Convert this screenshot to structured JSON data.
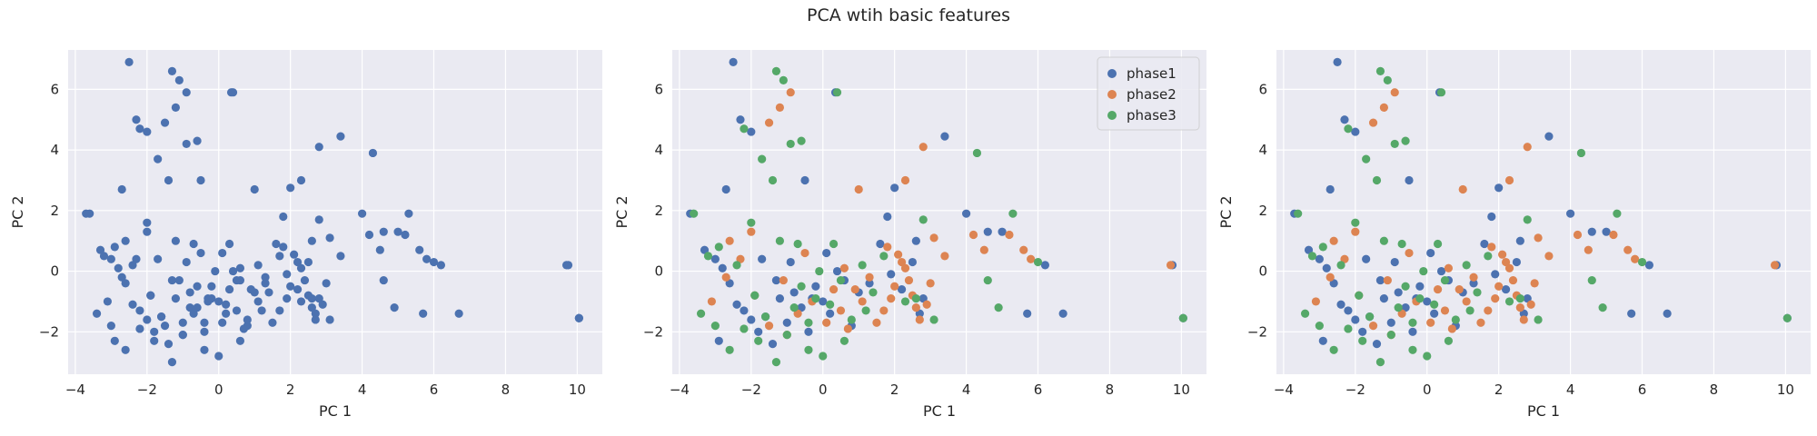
{
  "title": "PCA wtih basic features",
  "colors": {
    "phase1": "#4C72B0",
    "phase2": "#DD8452",
    "phase3": "#55A868",
    "background": "#EAEAF2",
    "grid": "#FFFFFF"
  },
  "legend": {
    "location": "top-right",
    "entries": [
      "phase1",
      "phase2",
      "phase3"
    ]
  },
  "chart_data": [
    {
      "type": "scatter",
      "title": "",
      "xlabel": "PC 1",
      "ylabel": "PC 2",
      "xlim": [
        -4.2,
        10.7
      ],
      "ylim": [
        -3.4,
        7.3
      ],
      "xticks": [
        -4,
        -2,
        0,
        2,
        4,
        6,
        8,
        10
      ],
      "yticks": [
        -2,
        0,
        2,
        4,
        6
      ],
      "grid": true,
      "legend": false,
      "highlight_series": null,
      "series_ref": "all"
    },
    {
      "type": "scatter",
      "title": "",
      "xlabel": "PC 1",
      "ylabel": "PC 2",
      "xlim": [
        -4.2,
        10.7
      ],
      "ylim": [
        -3.4,
        7.3
      ],
      "xticks": [
        -4,
        -2,
        0,
        2,
        4,
        6,
        8,
        10
      ],
      "yticks": [
        -2,
        0,
        2,
        4,
        6
      ],
      "grid": true,
      "legend": true,
      "highlight_series": "colored",
      "series_ref": "all"
    },
    {
      "type": "scatter",
      "title": "",
      "xlabel": "PC 1",
      "ylabel": "PC 2",
      "xlim": [
        -4.2,
        10.7
      ],
      "ylim": [
        -3.4,
        7.3
      ],
      "xticks": [
        -4,
        -2,
        0,
        2,
        4,
        6,
        8,
        10
      ],
      "yticks": [
        -2,
        0,
        2,
        4,
        6
      ],
      "grid": true,
      "legend": false,
      "highlight_series": "colored",
      "series_ref": "all"
    }
  ],
  "series": [
    {
      "name": "phase1",
      "points": [
        [
          -2.5,
          6.9
        ],
        [
          0.35,
          5.9
        ],
        [
          -2.7,
          2.7
        ],
        [
          -3.7,
          1.9
        ],
        [
          -2.3,
          5.0
        ],
        [
          -2.0,
          4.6
        ],
        [
          3.4,
          4.45
        ],
        [
          -0.5,
          3.0
        ],
        [
          2.0,
          2.75
        ],
        [
          4.0,
          1.9
        ],
        [
          4.6,
          1.3
        ],
        [
          5.0,
          1.3
        ],
        [
          6.2,
          0.2
        ],
        [
          9.75,
          0.2
        ],
        [
          10.05,
          -1.55
        ],
        [
          6.7,
          -1.4
        ],
        [
          5.7,
          -1.4
        ],
        [
          2.7,
          -1.4
        ],
        [
          -3.3,
          0.7
        ],
        [
          -3.0,
          0.4
        ],
        [
          -2.8,
          0.1
        ],
        [
          -2.6,
          -0.4
        ],
        [
          -2.4,
          -1.1
        ],
        [
          -2.2,
          -1.3
        ],
        [
          -2.0,
          -1.6
        ],
        [
          -1.8,
          -2.0
        ],
        [
          -1.6,
          -1.5
        ],
        [
          -1.4,
          -2.4
        ],
        [
          -1.2,
          -0.9
        ],
        [
          -1.0,
          -1.7
        ],
        [
          -0.8,
          -0.7
        ],
        [
          -0.6,
          -1.2
        ],
        [
          -0.4,
          -2.0
        ],
        [
          -0.2,
          -0.5
        ],
        [
          0.0,
          -1.0
        ],
        [
          0.2,
          -1.4
        ],
        [
          0.4,
          0.0
        ],
        [
          0.6,
          -0.3
        ],
        [
          0.8,
          -1.8
        ],
        [
          1.0,
          -0.7
        ],
        [
          1.3,
          -0.4
        ],
        [
          1.6,
          0.9
        ],
        [
          1.9,
          -0.1
        ],
        [
          2.2,
          -0.6
        ],
        [
          2.5,
          0.3
        ],
        [
          2.8,
          -0.9
        ],
        [
          -2.9,
          -2.3
        ],
        [
          -1.7,
          0.4
        ],
        [
          -0.9,
          0.3
        ],
        [
          0.1,
          0.6
        ],
        [
          1.8,
          1.8
        ],
        [
          2.6,
          1.0
        ],
        [
          -1.3,
          -0.3
        ],
        [
          -0.3,
          -0.9
        ]
      ]
    },
    {
      "name": "phase2",
      "points": [
        [
          -1.5,
          4.9
        ],
        [
          -1.2,
          5.4
        ],
        [
          -0.9,
          5.9
        ],
        [
          2.8,
          4.1
        ],
        [
          2.3,
          3.0
        ],
        [
          3.1,
          1.1
        ],
        [
          1.0,
          2.7
        ],
        [
          4.2,
          1.2
        ],
        [
          4.5,
          0.7
        ],
        [
          5.2,
          1.2
        ],
        [
          5.6,
          0.7
        ],
        [
          5.8,
          0.4
        ],
        [
          9.7,
          0.2
        ],
        [
          2.1,
          0.55
        ],
        [
          2.3,
          0.1
        ],
        [
          2.4,
          -0.3
        ],
        [
          2.5,
          -0.8
        ],
        [
          2.6,
          -1.2
        ],
        [
          2.7,
          -1.6
        ],
        [
          2.9,
          -1.1
        ],
        [
          3.0,
          -0.4
        ],
        [
          1.9,
          -0.9
        ],
        [
          1.7,
          -1.3
        ],
        [
          1.5,
          -1.7
        ],
        [
          1.3,
          -0.2
        ],
        [
          1.1,
          -1.0
        ],
        [
          0.9,
          -0.6
        ],
        [
          0.7,
          -1.9
        ],
        [
          0.5,
          -1.3
        ],
        [
          0.3,
          -0.6
        ],
        [
          0.1,
          -1.7
        ],
        [
          -0.3,
          -1.0
        ],
        [
          -0.7,
          -1.4
        ],
        [
          -1.1,
          -0.3
        ],
        [
          -1.5,
          -1.8
        ],
        [
          -1.9,
          -0.8
        ],
        [
          -2.3,
          0.4
        ],
        [
          -2.7,
          -0.2
        ],
        [
          -3.1,
          -1.0
        ],
        [
          -0.5,
          0.6
        ],
        [
          1.8,
          0.8
        ],
        [
          2.2,
          0.3
        ],
        [
          2.0,
          -0.5
        ],
        [
          3.4,
          0.5
        ],
        [
          -2.0,
          1.3
        ],
        [
          -1.0,
          -2.1
        ],
        [
          0.6,
          0.1
        ],
        [
          -2.6,
          1.0
        ]
      ]
    },
    {
      "name": "phase3",
      "points": [
        [
          -1.3,
          6.6
        ],
        [
          -1.1,
          6.3
        ],
        [
          -2.2,
          4.7
        ],
        [
          -1.7,
          3.7
        ],
        [
          -1.4,
          3.0
        ],
        [
          -0.9,
          4.2
        ],
        [
          -0.6,
          4.3
        ],
        [
          0.4,
          5.9
        ],
        [
          4.3,
          3.9
        ],
        [
          2.8,
          1.7
        ],
        [
          -3.6,
          1.9
        ],
        [
          -2.9,
          0.8
        ],
        [
          -3.4,
          -1.4
        ],
        [
          -3.0,
          -1.8
        ],
        [
          -2.6,
          -2.6
        ],
        [
          -2.2,
          -1.9
        ],
        [
          -1.9,
          -0.8
        ],
        [
          -1.6,
          -1.5
        ],
        [
          -1.3,
          -3.0
        ],
        [
          -1.0,
          -2.1
        ],
        [
          -0.8,
          -1.2
        ],
        [
          -0.6,
          -0.5
        ],
        [
          -0.4,
          -1.7
        ],
        [
          -0.2,
          -0.9
        ],
        [
          0.0,
          -2.8
        ],
        [
          0.2,
          -1.1
        ],
        [
          0.5,
          -0.3
        ],
        [
          0.8,
          -1.6
        ],
        [
          1.1,
          0.2
        ],
        [
          1.4,
          -0.7
        ],
        [
          1.7,
          0.5
        ],
        [
          2.3,
          -1.0
        ],
        [
          4.6,
          -0.3
        ],
        [
          4.9,
          -1.2
        ],
        [
          10.05,
          -1.55
        ],
        [
          6.0,
          0.3
        ],
        [
          -2.4,
          0.2
        ],
        [
          -2.0,
          1.6
        ],
        [
          -1.2,
          1.0
        ],
        [
          -0.7,
          0.9
        ],
        [
          -0.1,
          0.0
        ],
        [
          0.6,
          -2.3
        ],
        [
          1.2,
          -1.3
        ],
        [
          2.6,
          -0.9
        ],
        [
          3.1,
          -1.6
        ],
        [
          -3.2,
          0.5
        ],
        [
          -1.8,
          -2.3
        ],
        [
          0.3,
          0.9
        ],
        [
          5.3,
          1.9
        ],
        [
          -0.4,
          -2.6
        ]
      ]
    }
  ]
}
